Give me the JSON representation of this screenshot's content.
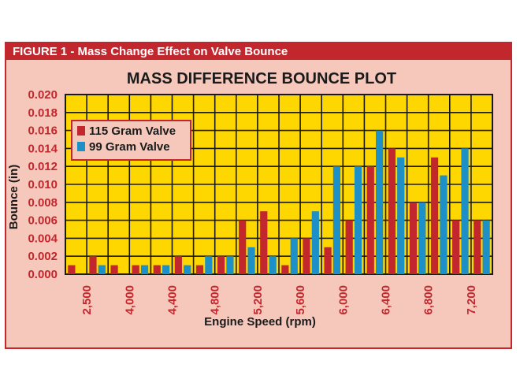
{
  "figure_label": "FIGURE 1 - Mass Change Effect on Valve Bounce",
  "colors": {
    "header_bg": "#c1272d",
    "panel_bg": "#f6c8bc",
    "plot_bg": "#ffd700",
    "tick_text": "#c1272d",
    "series_115": "#c1272d",
    "series_99": "#1e90c8"
  },
  "chart_data": {
    "type": "bar",
    "title": "MASS DIFFERENCE BOUNCE PLOT",
    "xlabel": "Engine Speed (rpm)",
    "ylabel": "Bounce (in)",
    "ylim": [
      0,
      0.02
    ],
    "y_ticks": [
      "0.000",
      "0.002",
      "0.004",
      "0.006",
      "0.008",
      "0.010",
      "0.012",
      "0.014",
      "0.016",
      "0.018",
      "0.020"
    ],
    "x_tick_labels": [
      "2,500",
      "4,000",
      "4,400",
      "4,800",
      "5,200",
      "5,600",
      "6,000",
      "6,400",
      "6,800",
      "7,200"
    ],
    "legend_position": "top-left",
    "grid": true,
    "series": [
      {
        "name": "115 Gram Valve",
        "values": [
          0.001,
          0.002,
          0.001,
          0.001,
          0.001,
          0.002,
          0.001,
          0.002,
          0.006,
          0.007,
          0.001,
          0.004,
          0.003,
          0.006,
          0.012,
          0.014,
          0.008,
          0.013,
          0.006,
          0.006
        ]
      },
      {
        "name": "99 Gram Valve",
        "values": [
          0.0,
          0.001,
          0.0,
          0.001,
          0.001,
          0.001,
          0.002,
          0.002,
          0.003,
          0.002,
          0.004,
          0.007,
          0.012,
          0.012,
          0.016,
          0.013,
          0.008,
          0.011,
          0.014,
          0.006
        ]
      }
    ]
  }
}
